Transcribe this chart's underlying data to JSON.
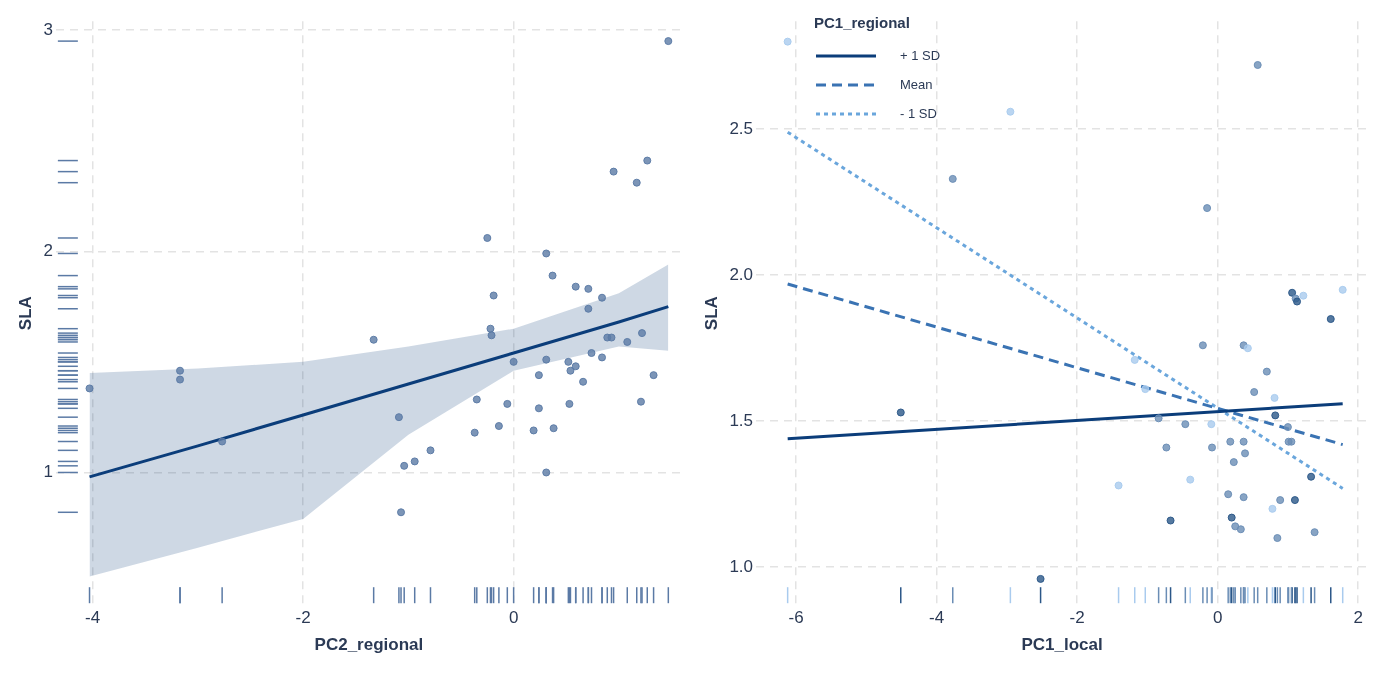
{
  "chart_data": [
    {
      "type": "scatter",
      "xlabel": "PC2_regional",
      "ylabel": "SLA",
      "xlim": [
        -4.35,
        1.6
      ],
      "ylim": [
        0.4,
        3.04
      ],
      "xticks": [
        -4,
        -2,
        0
      ],
      "yticks": [
        1,
        2,
        3
      ],
      "grid": true,
      "series": [
        {
          "color": "#5b7aa5",
          "x": [
            -4.03,
            -3.17,
            -3.17,
            -2.77,
            -1.33,
            -1.09,
            -1.07,
            -1.04,
            -0.94,
            -0.79,
            -0.25,
            -0.19,
            -0.22,
            -0.21,
            -0.37,
            -0.35,
            -0.14,
            -0.06,
            0,
            0.19,
            0.24,
            0.24,
            0.31,
            0.31,
            0.31,
            0.38,
            0.37,
            0.52,
            0.53,
            0.54,
            0.59,
            0.59,
            0.66,
            0.71,
            0.71,
            0.74,
            0.84,
            0.84,
            0.89,
            0.93,
            0.95,
            1.08,
            1.17,
            1.21,
            1.22,
            1.27,
            1.33,
            1.47
          ],
          "values": [
            1.38,
            1.46,
            1.42,
            1.14,
            1.6,
            1.25,
            0.82,
            1.03,
            1.05,
            1.1,
            2.06,
            1.8,
            1.65,
            1.62,
            1.18,
            1.33,
            1.21,
            1.31,
            1.5,
            1.19,
            1.29,
            1.44,
            1.99,
            1,
            1.51,
            1.2,
            1.89,
            1.5,
            1.31,
            1.46,
            1.48,
            1.84,
            1.41,
            1.83,
            1.74,
            1.54,
            1.79,
            1.52,
            1.61,
            1.61,
            2.36,
            1.59,
            2.31,
            1.32,
            1.63,
            2.41,
            1.44,
            2.95
          ]
        },
        {
          "type": "line",
          "color": "#0b3d7a",
          "x": [
            -4.03,
            -3,
            -2,
            -1,
            0,
            1,
            1.47
          ],
          "values": [
            0.98,
            1.12,
            1.26,
            1.4,
            1.54,
            1.68,
            1.75
          ],
          "lower": [
            0.53,
            0.66,
            0.79,
            1.17,
            1.46,
            1.57,
            1.55
          ],
          "upper": [
            1.45,
            1.47,
            1.5,
            1.57,
            1.65,
            1.81,
            1.94
          ]
        }
      ]
    },
    {
      "type": "scatter",
      "xlabel": "PC1_local",
      "ylabel": "SLA",
      "legend_title": "PC1_regional",
      "legend": "top left",
      "xlim": [
        -6.57,
        2.14
      ],
      "ylim": [
        0.87,
        2.87
      ],
      "xticks": [
        -6,
        -4,
        -2,
        0,
        2
      ],
      "yticks": [
        {
          "value": 1,
          "label": "1.0"
        },
        {
          "value": 1.5,
          "label": "1.5"
        },
        {
          "value": 2,
          "label": "2.0"
        },
        {
          "value": 2.5,
          "label": "2.5"
        }
      ],
      "grid": true,
      "series": [
        {
          "x": [
            -6.12,
            -2.95,
            -3.77,
            0.57,
            -0.15,
            1.06,
            1.11,
            1.13,
            1.22,
            1.78,
            1.61,
            -4.51,
            -2.52,
            -1.41,
            -1.18,
            -1.03,
            -0.84,
            -0.73,
            -0.67,
            -0.46,
            -0.39,
            -0.21,
            -0.09,
            -0.08,
            0.15,
            0.18,
            0.2,
            0.23,
            0.25,
            0.33,
            0.37,
            0.39,
            0.37,
            0.37,
            0.43,
            0.52,
            0.7,
            0.78,
            0.81,
            0.82,
            0.85,
            0.89,
            1,
            1.01,
            1.05,
            1.1,
            1.33,
            1.38
          ],
          "values": [
            2.8,
            2.56,
            2.33,
            2.72,
            2.23,
            1.94,
            1.92,
            1.91,
            1.93,
            1.95,
            1.85,
            1.53,
            0.96,
            1.28,
            1.71,
            1.61,
            1.51,
            1.41,
            1.16,
            1.49,
            1.3,
            1.76,
            1.49,
            1.41,
            1.25,
            1.43,
            1.17,
            1.36,
            1.14,
            1.13,
            1.43,
            1.39,
            1.24,
            1.76,
            1.75,
            1.6,
            1.67,
            1.2,
            1.58,
            1.52,
            1.1,
            1.23,
            1.48,
            1.43,
            1.43,
            1.23,
            1.31,
            1.12
          ],
          "colors": [
            "#a9cbee",
            "#a9cbee",
            "#6a8db5",
            "#6a8db5",
            "#6a8db5",
            "#2b5788",
            "#6a8db5",
            "#2b5788",
            "#a9cbee",
            "#a9cbee",
            "#2b5788",
            "#2b5788",
            "#2b5788",
            "#a9cbee",
            "#a9cbee",
            "#a9cbee",
            "#6a8db5",
            "#6a8db5",
            "#2b5788",
            "#6a8db5",
            "#a9cbee",
            "#6a8db5",
            "#a9cbee",
            "#6a8db5",
            "#6a8db5",
            "#6a8db5",
            "#2b5788",
            "#6a8db5",
            "#6a8db5",
            "#6a8db5",
            "#6a8db5",
            "#6a8db5",
            "#6a8db5",
            "#6a8db5",
            "#a9cbee",
            "#6a8db5",
            "#6a8db5",
            "#a9cbee",
            "#a9cbee",
            "#2b5788",
            "#6a8db5",
            "#6a8db5",
            "#6a8db5",
            "#6a8db5",
            "#6a8db5",
            "#2b5788",
            "#2b5788",
            "#6a8db5"
          ]
        },
        {
          "type": "line",
          "name": "+ 1 SD",
          "color": "#0b3d7a",
          "line_style": "solid",
          "x": [
            -6.12,
            1.78
          ],
          "values": [
            1.44,
            1.56
          ]
        },
        {
          "type": "line",
          "name": "Mean",
          "color": "#3a73b3",
          "line_style": "dashed",
          "x": [
            -6.12,
            1.78
          ],
          "values": [
            1.97,
            1.42
          ]
        },
        {
          "type": "line",
          "name": "- 1 SD",
          "color": "#6aa6dc",
          "line_style": "dotted",
          "x": [
            -6.12,
            1.78
          ],
          "values": [
            2.49,
            1.27
          ]
        }
      ]
    }
  ]
}
